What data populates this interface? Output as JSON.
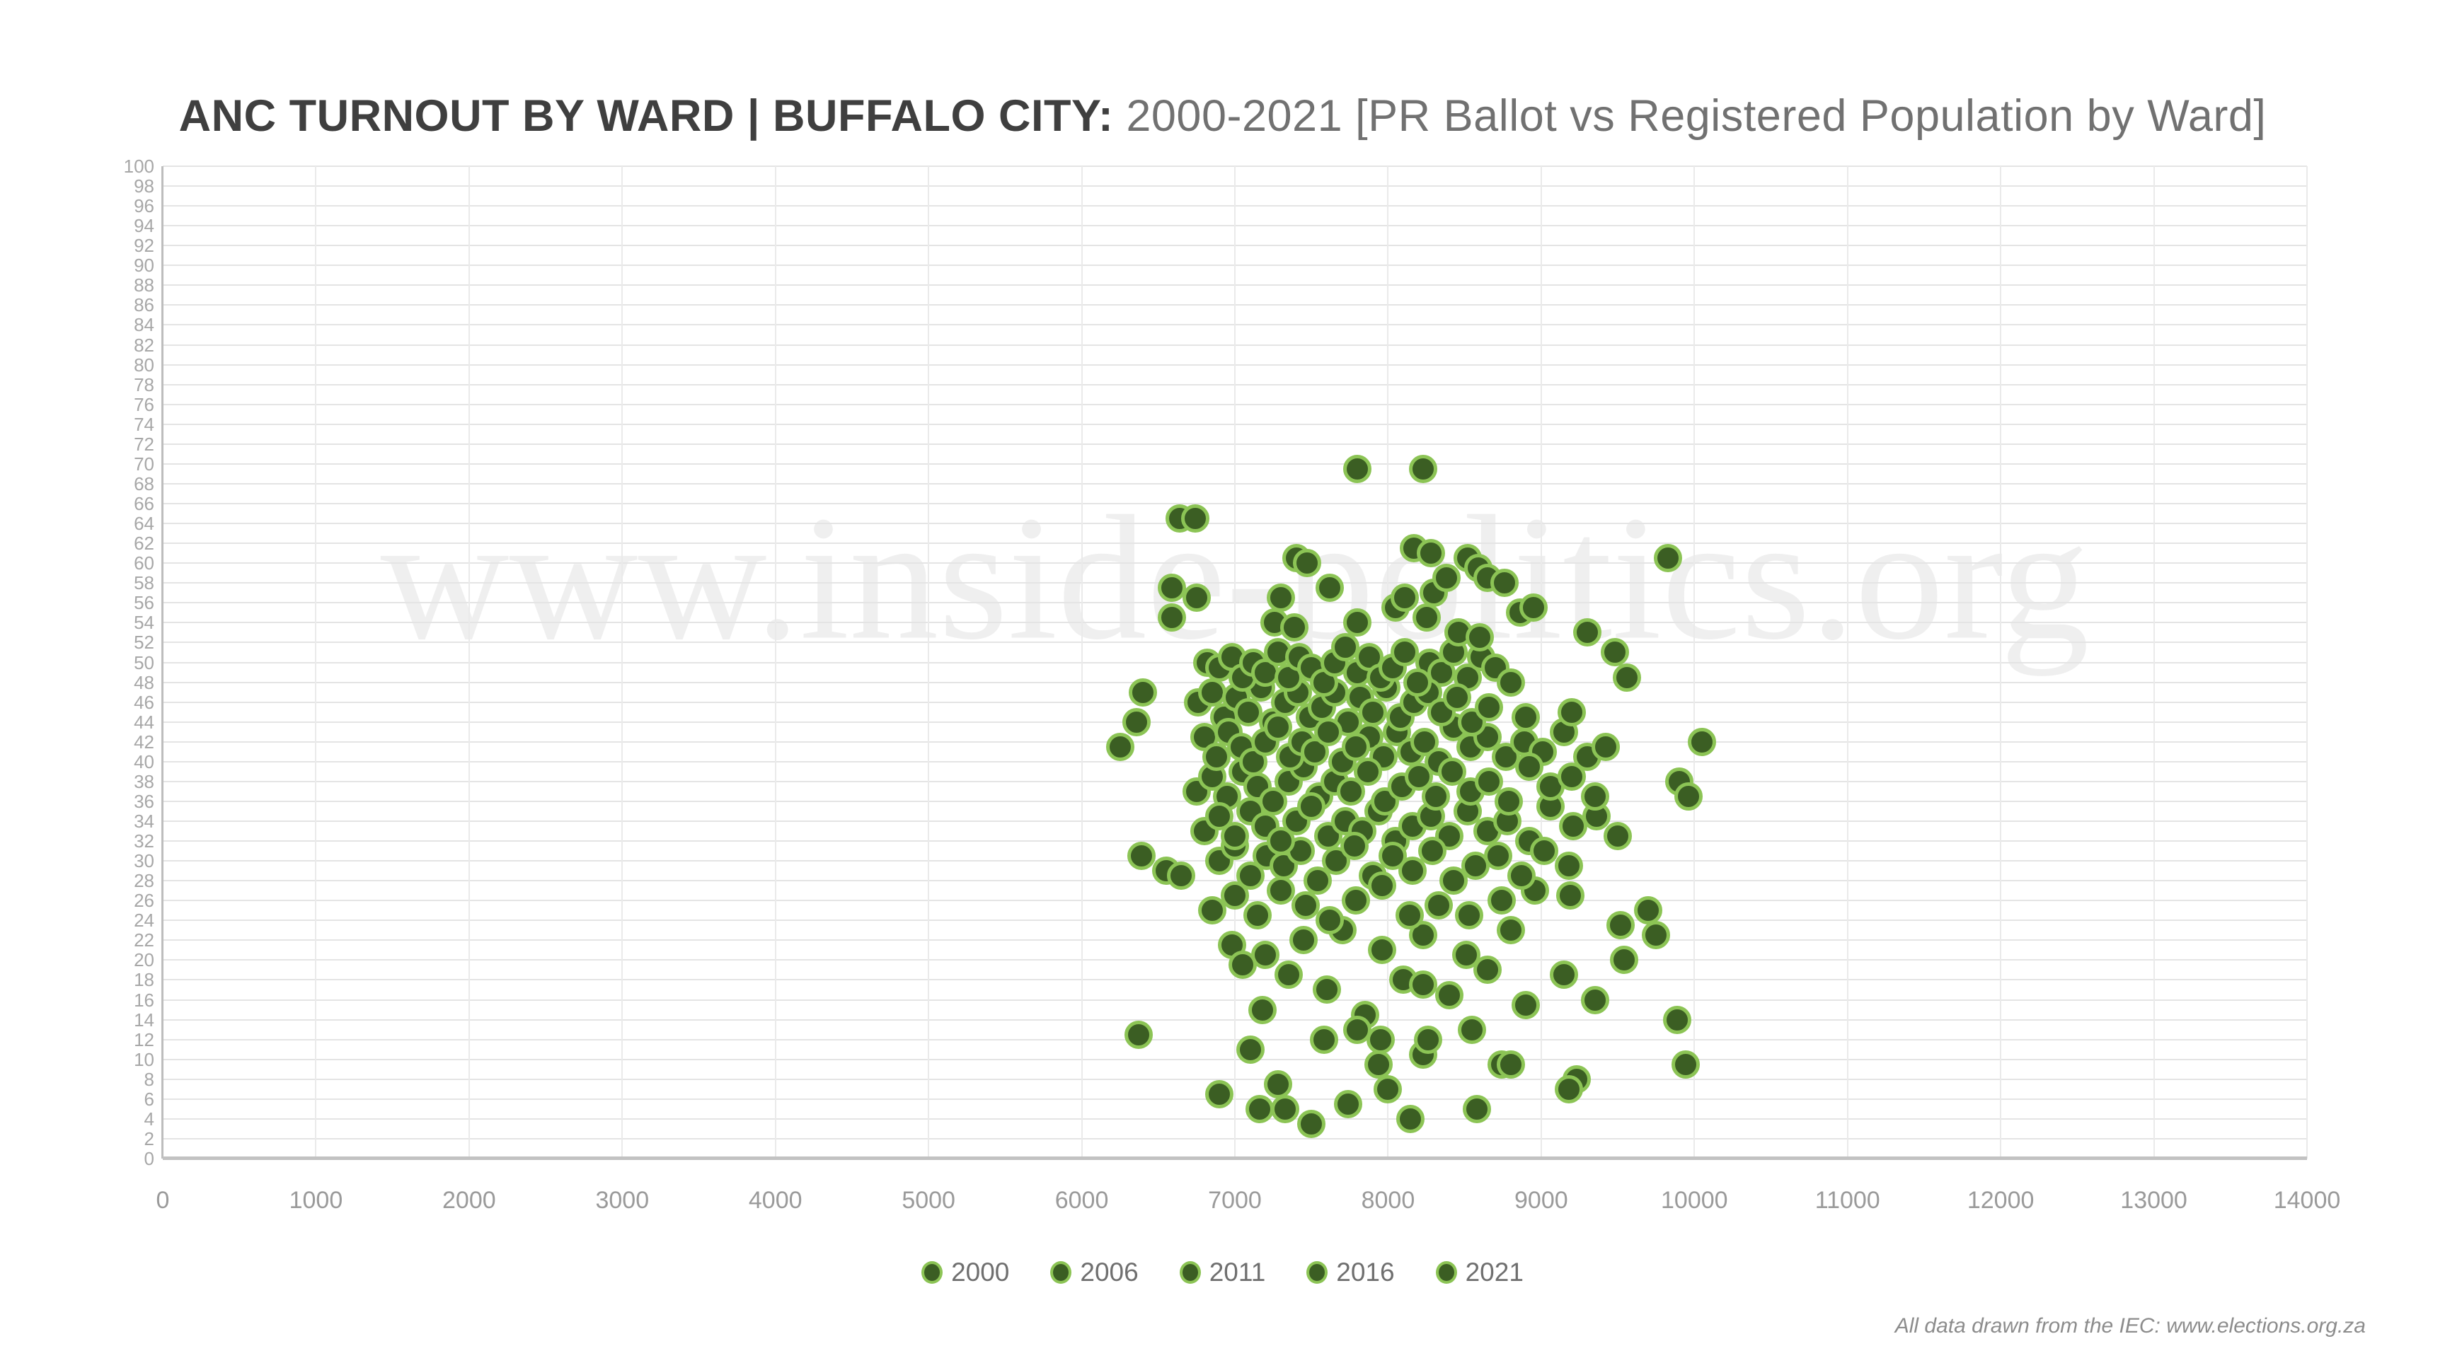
{
  "title": {
    "main": "ANC TURNOUT BY WARD | BUFFALO CITY:",
    "sub": " 2000-2021 [PR Ballot vs Registered Population by Ward]"
  },
  "watermark": "www.inside-politics.org",
  "footer": "All data drawn from the IEC: www.elections.org.za",
  "colors": {
    "point_fill": "#3b5e23",
    "point_ring": "#8cc455",
    "grid_h": "#e4e4e4",
    "grid_v": "#eaeaea",
    "axis": "#c2c2c2",
    "tick_text": "#a7a7a7",
    "title_main": "#3f3f3f",
    "title_sub": "#717171",
    "watermark_text": "#efefef"
  },
  "chart_data": {
    "type": "scatter",
    "title": "ANC TURNOUT BY WARD | BUFFALO CITY: 2000-2021 [PR Ballot vs Registered Population by Ward]",
    "xlabel": "",
    "ylabel": "",
    "xlim": [
      0,
      14000
    ],
    "ylim": [
      0,
      100
    ],
    "x_tick_step": 1000,
    "y_tick_step": 2,
    "grid": true,
    "legend_position": "bottom",
    "series": [
      {
        "name": "2000",
        "points": [
          [
            7800,
            69.5
          ],
          [
            8230,
            69.5
          ],
          [
            6640,
            64.5
          ],
          [
            6740,
            64.5
          ],
          [
            8170,
            61.5
          ],
          [
            8280,
            61
          ],
          [
            7400,
            60.5
          ],
          [
            7470,
            60
          ],
          [
            9830,
            60.5
          ],
          [
            8520,
            60.5
          ],
          [
            8270,
            50
          ],
          [
            8350,
            49
          ],
          [
            8430,
            51
          ],
          [
            8520,
            48.5
          ],
          [
            8610,
            50.5
          ],
          [
            8700,
            49.5
          ],
          [
            8800,
            48
          ],
          [
            9480,
            51
          ],
          [
            9560,
            48.5
          ],
          [
            6360,
            44
          ],
          [
            7880,
            42.5
          ],
          [
            7970,
            40.5
          ],
          [
            8060,
            43
          ],
          [
            8150,
            41
          ],
          [
            8240,
            42
          ],
          [
            8330,
            40
          ],
          [
            8430,
            43.5
          ],
          [
            8540,
            41.5
          ],
          [
            8650,
            42.5
          ],
          [
            8770,
            40.5
          ],
          [
            7610,
            32.5
          ],
          [
            7720,
            34
          ],
          [
            7830,
            33
          ],
          [
            7940,
            35
          ],
          [
            8050,
            32
          ],
          [
            8160,
            33.5
          ],
          [
            8280,
            34.5
          ],
          [
            8400,
            32.5
          ],
          [
            8520,
            35
          ],
          [
            8650,
            33
          ],
          [
            8960,
            27
          ],
          [
            9190,
            26.5
          ],
          [
            9700,
            25
          ],
          [
            6980,
            21.5
          ],
          [
            7200,
            20.5
          ],
          [
            7450,
            22
          ],
          [
            7700,
            23
          ],
          [
            7960,
            21
          ],
          [
            8230,
            22.5
          ],
          [
            8510,
            20.5
          ]
        ]
      },
      {
        "name": "2006",
        "points": [
          [
            8590,
            59.5
          ],
          [
            6590,
            57.5
          ],
          [
            6750,
            56.5
          ],
          [
            6590,
            54.5
          ],
          [
            7260,
            54
          ],
          [
            7300,
            56.5
          ],
          [
            7390,
            53.5
          ],
          [
            7620,
            57.5
          ],
          [
            7800,
            54
          ],
          [
            8050,
            55.5
          ],
          [
            6400,
            47
          ],
          [
            6760,
            46
          ],
          [
            6850,
            47
          ],
          [
            6930,
            44.5
          ],
          [
            7010,
            46.5
          ],
          [
            7090,
            45
          ],
          [
            7170,
            47.5
          ],
          [
            7250,
            44
          ],
          [
            7330,
            46
          ],
          [
            7410,
            47
          ],
          [
            8890,
            42
          ],
          [
            9010,
            41
          ],
          [
            9150,
            43
          ],
          [
            9300,
            40.5
          ],
          [
            9420,
            41.5
          ],
          [
            10050,
            42
          ],
          [
            6750,
            37
          ],
          [
            6850,
            38.5
          ],
          [
            6950,
            36.5
          ],
          [
            7050,
            39
          ],
          [
            8780,
            34
          ],
          [
            8920,
            32
          ],
          [
            9060,
            35.5
          ],
          [
            9210,
            33.5
          ],
          [
            9360,
            34.5
          ],
          [
            9500,
            32.5
          ],
          [
            6390,
            30.5
          ],
          [
            6550,
            29
          ],
          [
            6650,
            28.5
          ],
          [
            6900,
            30
          ],
          [
            8800,
            23
          ],
          [
            9520,
            23.5
          ],
          [
            9540,
            20
          ],
          [
            9750,
            22.5
          ],
          [
            7050,
            19.5
          ],
          [
            7180,
            15
          ],
          [
            7350,
            18.5
          ],
          [
            7600,
            17
          ],
          [
            7850,
            14.5
          ],
          [
            8100,
            18
          ]
        ]
      },
      {
        "name": "2011",
        "points": [
          [
            8110,
            56.5
          ],
          [
            8250,
            54.5
          ],
          [
            8300,
            57
          ],
          [
            8380,
            58.5
          ],
          [
            8460,
            53
          ],
          [
            8600,
            52.5
          ],
          [
            8650,
            58.5
          ],
          [
            8760,
            58
          ],
          [
            8860,
            55
          ],
          [
            8950,
            55.5
          ],
          [
            7490,
            44.5
          ],
          [
            7570,
            45.5
          ],
          [
            7650,
            47
          ],
          [
            7740,
            44
          ],
          [
            7820,
            46.5
          ],
          [
            7900,
            45
          ],
          [
            7990,
            47.5
          ],
          [
            8080,
            44.5
          ],
          [
            8170,
            46
          ],
          [
            8260,
            47
          ],
          [
            7150,
            37.5
          ],
          [
            7250,
            36
          ],
          [
            7350,
            38
          ],
          [
            7450,
            39.5
          ],
          [
            7550,
            36.5
          ],
          [
            7650,
            38
          ],
          [
            7760,
            37
          ],
          [
            7870,
            39
          ],
          [
            7980,
            36
          ],
          [
            8090,
            37.5
          ],
          [
            7000,
            31.5
          ],
          [
            7100,
            28.5
          ],
          [
            7210,
            30.5
          ],
          [
            7320,
            29.5
          ],
          [
            7430,
            31
          ],
          [
            7540,
            28
          ],
          [
            7660,
            30
          ],
          [
            7780,
            31.5
          ],
          [
            7900,
            28.5
          ],
          [
            8030,
            30.5
          ],
          [
            8230,
            17.5
          ],
          [
            8400,
            16.5
          ],
          [
            8650,
            19
          ],
          [
            8900,
            15.5
          ],
          [
            9150,
            18.5
          ],
          [
            9350,
            16
          ],
          [
            9890,
            14
          ],
          [
            6370,
            12.5
          ],
          [
            7100,
            11
          ],
          [
            7580,
            12
          ]
        ]
      },
      {
        "name": "2016",
        "points": [
          [
            9300,
            53
          ],
          [
            6820,
            50
          ],
          [
            6900,
            49.5
          ],
          [
            6980,
            50.5
          ],
          [
            7050,
            48.5
          ],
          [
            7120,
            50
          ],
          [
            7200,
            49
          ],
          [
            7280,
            51
          ],
          [
            7350,
            48.5
          ],
          [
            7420,
            50.5
          ],
          [
            8350,
            45
          ],
          [
            8450,
            46.5
          ],
          [
            8550,
            44
          ],
          [
            8660,
            45.5
          ],
          [
            8900,
            44.5
          ],
          [
            9200,
            45
          ],
          [
            6250,
            41.5
          ],
          [
            6800,
            42.5
          ],
          [
            6880,
            40.5
          ],
          [
            6960,
            43
          ],
          [
            8200,
            38.5
          ],
          [
            8310,
            36.5
          ],
          [
            8420,
            39
          ],
          [
            8540,
            37
          ],
          [
            8660,
            38
          ],
          [
            8790,
            36
          ],
          [
            8920,
            39.5
          ],
          [
            9060,
            37.5
          ],
          [
            9200,
            38.5
          ],
          [
            9350,
            36.5
          ],
          [
            8160,
            29
          ],
          [
            8290,
            31
          ],
          [
            8430,
            28
          ],
          [
            8570,
            29.5
          ],
          [
            8720,
            30.5
          ],
          [
            8870,
            28.5
          ],
          [
            9020,
            31
          ],
          [
            9180,
            29.5
          ],
          [
            6850,
            25
          ],
          [
            7000,
            26.5
          ],
          [
            7800,
            13
          ],
          [
            7940,
            9.5
          ],
          [
            7950,
            12
          ],
          [
            8230,
            10.5
          ],
          [
            8260,
            12
          ],
          [
            8550,
            13
          ],
          [
            8740,
            9.5
          ],
          [
            8800,
            9.5
          ],
          [
            9230,
            8
          ],
          [
            9945,
            9.5
          ]
        ]
      },
      {
        "name": "2021",
        "points": [
          [
            7500,
            49.5
          ],
          [
            7580,
            48
          ],
          [
            7650,
            50
          ],
          [
            7720,
            51.5
          ],
          [
            7800,
            49
          ],
          [
            7880,
            50.5
          ],
          [
            7950,
            48.5
          ],
          [
            8030,
            49.5
          ],
          [
            8110,
            51
          ],
          [
            8190,
            48
          ],
          [
            7040,
            41.5
          ],
          [
            7120,
            40
          ],
          [
            7200,
            42
          ],
          [
            7280,
            43.5
          ],
          [
            7360,
            40.5
          ],
          [
            7440,
            42
          ],
          [
            7520,
            41
          ],
          [
            7610,
            43
          ],
          [
            7700,
            40
          ],
          [
            7790,
            41.5
          ],
          [
            9900,
            38
          ],
          [
            9960,
            36.5
          ],
          [
            6800,
            33
          ],
          [
            6900,
            34.5
          ],
          [
            7000,
            32.5
          ],
          [
            7100,
            35
          ],
          [
            7200,
            33.5
          ],
          [
            7300,
            32
          ],
          [
            7400,
            34
          ],
          [
            7500,
            35.5
          ],
          [
            7150,
            24.5
          ],
          [
            7300,
            27
          ],
          [
            7460,
            25.5
          ],
          [
            7620,
            24
          ],
          [
            7790,
            26
          ],
          [
            7960,
            27.5
          ],
          [
            8140,
            24.5
          ],
          [
            8330,
            25.5
          ],
          [
            8530,
            24.5
          ],
          [
            8740,
            26
          ],
          [
            6900,
            6.5
          ],
          [
            7160,
            5
          ],
          [
            7280,
            7.5
          ],
          [
            7330,
            5
          ],
          [
            7500,
            3.5
          ],
          [
            7740,
            5.5
          ],
          [
            8000,
            7
          ],
          [
            8145,
            4
          ],
          [
            8580,
            5
          ],
          [
            9180,
            7
          ]
        ]
      }
    ]
  }
}
